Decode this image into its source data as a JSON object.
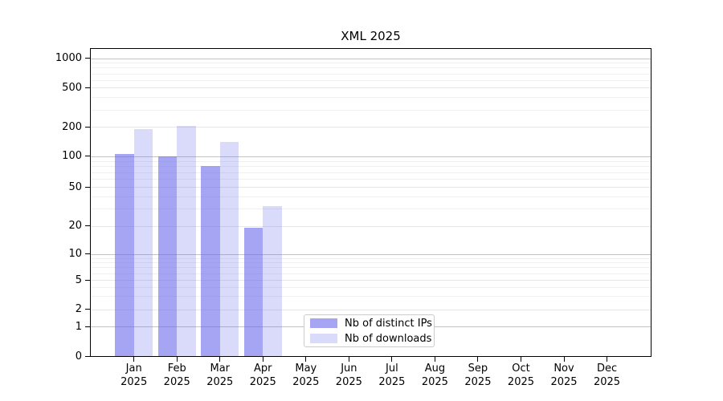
{
  "chart_data": {
    "type": "bar",
    "title": "XML 2025",
    "categories": [
      "Jan",
      "Feb",
      "Mar",
      "Apr",
      "May",
      "Jun",
      "Jul",
      "Aug",
      "Sep",
      "Oct",
      "Nov",
      "Dec"
    ],
    "year_label": "2025",
    "series": [
      {
        "name": "Nb of distinct IPs",
        "color": "rgba(100,100,235,0.58)",
        "values": [
          105,
          100,
          80,
          19,
          null,
          null,
          null,
          null,
          null,
          null,
          null,
          null
        ]
      },
      {
        "name": "Nb of downloads",
        "color": "rgba(100,100,235,0.24)",
        "values": [
          190,
          205,
          140,
          32,
          null,
          null,
          null,
          null,
          null,
          null,
          null,
          null
        ]
      }
    ],
    "yticks": [
      0,
      1,
      2,
      5,
      10,
      20,
      50,
      100,
      200,
      500,
      1000
    ],
    "xlabel": "",
    "ylabel": "",
    "ylim": [
      0,
      1300
    ],
    "scale": "symlog",
    "grid": "horizontal",
    "legend_position": "lower-center"
  },
  "colors": {
    "major_grid": "#c3c3c3",
    "minor_grid": "#f0f0f0",
    "mid_grid": "#e7e7e7",
    "spine": "#000000",
    "text": "#000000"
  }
}
